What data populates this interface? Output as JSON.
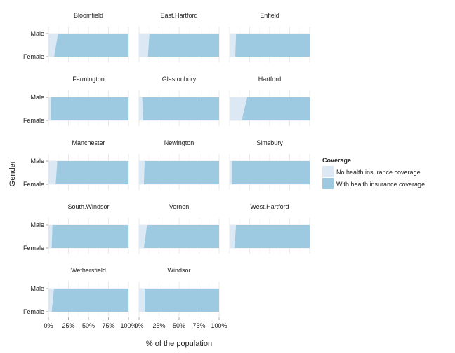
{
  "chart_data": {
    "type": "area",
    "xlabel": "% of the population",
    "ylabel": "Gender",
    "categories": [
      "Male",
      "Female"
    ],
    "x_ticks": [
      "0%",
      "25%",
      "50%",
      "75%",
      "100%"
    ],
    "xlim": [
      0,
      100
    ],
    "legend": {
      "title": "Coverage",
      "position": "right",
      "entries": [
        {
          "label": "No health insurance coverage",
          "color": "#dce9f5"
        },
        {
          "label": "With health insurance coverage",
          "color": "#9ecae1"
        }
      ]
    },
    "grid": true,
    "panels": [
      {
        "name": "Bloomfield",
        "no_coverage": {
          "Male": 12,
          "Female": 7
        }
      },
      {
        "name": "East.Hartford",
        "no_coverage": {
          "Male": 13,
          "Female": 11
        }
      },
      {
        "name": "Enfield",
        "no_coverage": {
          "Male": 8,
          "Female": 7
        }
      },
      {
        "name": "Farmington",
        "no_coverage": {
          "Male": 3,
          "Female": 3
        }
      },
      {
        "name": "Glastonbury",
        "no_coverage": {
          "Male": 4,
          "Female": 5
        }
      },
      {
        "name": "Hartford",
        "no_coverage": {
          "Male": 22,
          "Female": 15
        }
      },
      {
        "name": "Manchester",
        "no_coverage": {
          "Male": 11,
          "Female": 9
        }
      },
      {
        "name": "Newington",
        "no_coverage": {
          "Male": 7,
          "Female": 6
        }
      },
      {
        "name": "Simsbury",
        "no_coverage": {
          "Male": 3,
          "Female": 3
        }
      },
      {
        "name": "South.Windsor",
        "no_coverage": {
          "Male": 5,
          "Female": 4
        }
      },
      {
        "name": "Vernon",
        "no_coverage": {
          "Male": 10,
          "Female": 6
        }
      },
      {
        "name": "West.Hartford",
        "no_coverage": {
          "Male": 8,
          "Female": 6
        }
      },
      {
        "name": "Wethersfield",
        "no_coverage": {
          "Male": 7,
          "Female": 4
        }
      },
      {
        "name": "Windsor",
        "no_coverage": {
          "Male": 7,
          "Female": 7
        }
      }
    ]
  }
}
